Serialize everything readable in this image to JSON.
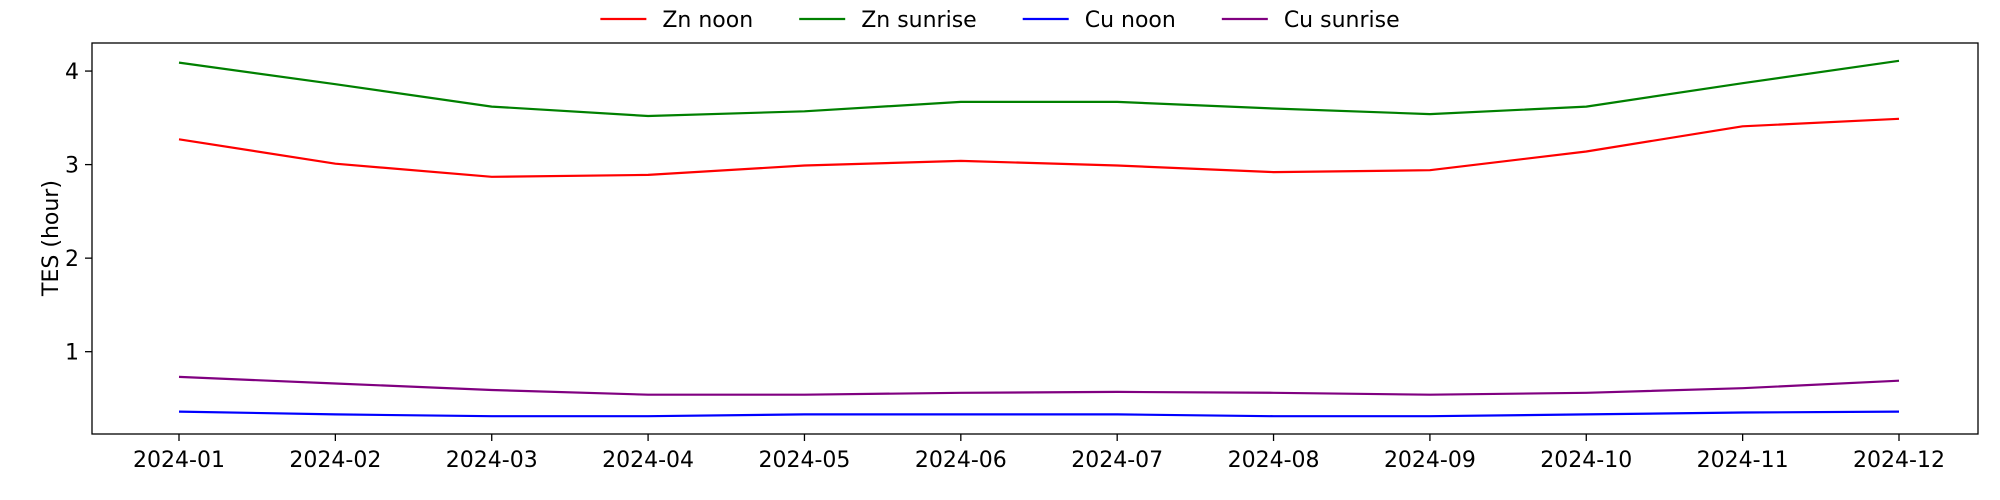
{
  "chart_data": {
    "type": "line",
    "title": "",
    "xlabel": "",
    "ylabel": "TES (hour)",
    "x": [
      "2024-01",
      "2024-02",
      "2024-03",
      "2024-04",
      "2024-05",
      "2024-06",
      "2024-07",
      "2024-08",
      "2024-09",
      "2024-10",
      "2024-11",
      "2024-12"
    ],
    "ylim": [
      0.12,
      4.3
    ],
    "yticks": [
      1,
      2,
      3,
      4
    ],
    "grid": false,
    "legend_position": "top-center",
    "series": [
      {
        "name": "Zn noon",
        "color": "#ff0000",
        "values": [
          3.27,
          3.01,
          2.87,
          2.89,
          2.99,
          3.04,
          2.99,
          2.92,
          2.94,
          3.14,
          3.41,
          3.49
        ]
      },
      {
        "name": "Zn sunrise",
        "color": "#008000",
        "values": [
          4.09,
          3.86,
          3.62,
          3.52,
          3.57,
          3.67,
          3.67,
          3.6,
          3.54,
          3.62,
          3.87,
          4.11
        ]
      },
      {
        "name": "Cu noon",
        "color": "#0000ff",
        "values": [
          0.36,
          0.33,
          0.31,
          0.31,
          0.33,
          0.33,
          0.33,
          0.31,
          0.31,
          0.33,
          0.35,
          0.36
        ]
      },
      {
        "name": "Cu sunrise",
        "color": "#800080",
        "values": [
          0.73,
          0.66,
          0.59,
          0.54,
          0.54,
          0.56,
          0.57,
          0.56,
          0.54,
          0.56,
          0.61,
          0.69
        ]
      }
    ]
  }
}
